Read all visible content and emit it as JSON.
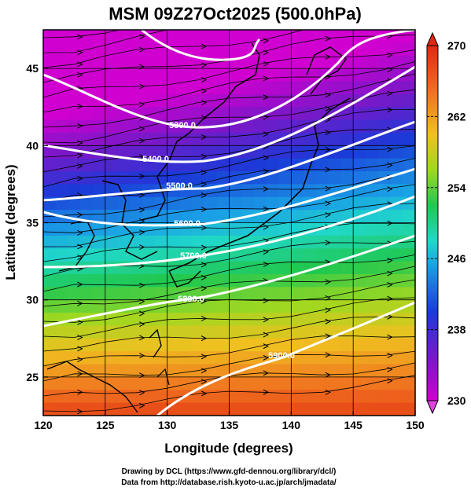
{
  "title": "MSM 09Z27Oct2025 (500.0hPa)",
  "xlabel": "Longitude (degrees)",
  "ylabel": "Latitude  (degrees)",
  "x_ticks": [
    "120",
    "125",
    "130",
    "135",
    "140",
    "145",
    "150"
  ],
  "y_ticks": [
    "25",
    "30",
    "35",
    "40",
    "45"
  ],
  "colorbar": {
    "min": 230,
    "max": 270,
    "tick_labels": [
      "270",
      "262",
      "254",
      "246",
      "238",
      "230"
    ]
  },
  "contours": {
    "variable": "geopotential height",
    "labels": [
      "5300.0",
      "5400.0",
      "5500.0",
      "5600.0",
      "5700.0",
      "5800.0",
      "5900.0"
    ],
    "color": "#ffffff"
  },
  "credits": {
    "line1": "Drawing by DCL (https://www.gfd-dennou.org/library/dcl/)",
    "line2": "Data from http://database.rish.kyoto-u.ac.jp/arch/jmadata/"
  },
  "chart_data": {
    "type": "heatmap",
    "title": "MSM 09Z27Oct2025 (500.0hPa)",
    "xlabel": "Longitude (degrees)",
    "ylabel": "Latitude  (degrees)",
    "xlim": [
      120,
      150
    ],
    "ylim": [
      22.5,
      47.5
    ],
    "color_range": [
      230,
      270
    ],
    "colormap": "rainbow (magenta-blue-cyan-green-yellow-orange-red)",
    "overlays": [
      "geopotential height contours (white)",
      "wind streamlines (black)",
      "coastlines",
      "lat/lon grid"
    ],
    "contour_levels": [
      5300,
      5400,
      5500,
      5600,
      5700,
      5800,
      5900
    ]
  }
}
